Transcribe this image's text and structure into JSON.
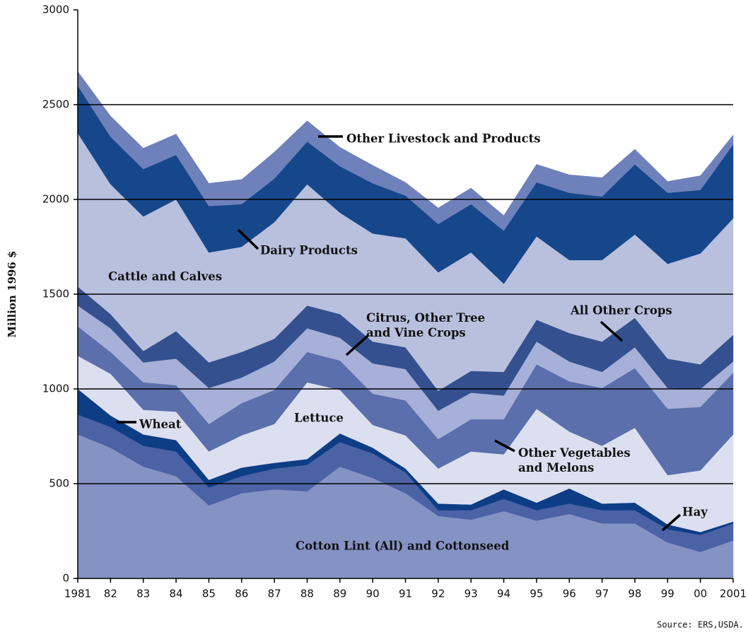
{
  "chart_data": {
    "type": "stacked_area",
    "y_label": "Million 1996 $",
    "source": "Source: ERS,USDA.",
    "categories": [
      "1981",
      "82",
      "83",
      "84",
      "85",
      "86",
      "87",
      "88",
      "89",
      "90",
      "91",
      "92",
      "93",
      "94",
      "95",
      "96",
      "97",
      "98",
      "99",
      "00",
      "2001"
    ],
    "ylim": [
      0,
      3000
    ],
    "yticks": [
      0,
      500,
      1000,
      1500,
      2000,
      2500,
      3000
    ],
    "grid": true,
    "series": [
      {
        "name": "Cotton Lint (All) and Cottonseed",
        "color": "#8592c4",
        "values": [
          760,
          690,
          590,
          540,
          385,
          450,
          470,
          460,
          590,
          530,
          450,
          330,
          310,
          355,
          305,
          340,
          290,
          290,
          190,
          140,
          200
        ]
      },
      {
        "name": "Hay",
        "color": "#4b62a5",
        "values": [
          105,
          110,
          110,
          130,
          95,
          90,
          110,
          140,
          130,
          130,
          110,
          30,
          50,
          65,
          55,
          55,
          70,
          70,
          70,
          90,
          90
        ]
      },
      {
        "name": "Wheat",
        "color": "#0d3d85",
        "values": [
          135,
          60,
          60,
          60,
          40,
          45,
          30,
          30,
          45,
          30,
          20,
          35,
          30,
          50,
          40,
          80,
          35,
          40,
          25,
          15,
          10
        ]
      },
      {
        "name": "Lettuce",
        "color": "#dcdff0",
        "values": [
          175,
          220,
          130,
          150,
          150,
          170,
          205,
          405,
          230,
          120,
          175,
          185,
          280,
          185,
          495,
          300,
          305,
          395,
          260,
          325,
          460
        ]
      },
      {
        "name": "Other Vegetables and Melons",
        "color": "#5a6fab",
        "values": [
          155,
          115,
          145,
          140,
          145,
          170,
          180,
          160,
          155,
          165,
          185,
          155,
          170,
          185,
          235,
          265,
          305,
          315,
          350,
          335,
          325
        ]
      },
      {
        "name": "Citrus, Other Tree and Vine Crops",
        "color": "#a6b0d8",
        "values": [
          110,
          125,
          105,
          140,
          190,
          135,
          150,
          125,
          120,
          160,
          165,
          150,
          140,
          125,
          120,
          105,
          85,
          110,
          110,
          95,
          60
        ]
      },
      {
        "name": "All Other Crops",
        "color": "#34508f",
        "values": [
          100,
          75,
          60,
          145,
          135,
          135,
          120,
          120,
          125,
          115,
          115,
          105,
          115,
          125,
          115,
          150,
          160,
          155,
          155,
          130,
          140
        ]
      },
      {
        "name": "Cattle and Calves",
        "color": "#b8c0de",
        "values": [
          810,
          685,
          710,
          695,
          580,
          555,
          615,
          640,
          535,
          570,
          575,
          625,
          625,
          465,
          440,
          385,
          430,
          440,
          500,
          585,
          615
        ]
      },
      {
        "name": "Dairy Products",
        "color": "#16478b",
        "values": [
          250,
          250,
          250,
          235,
          245,
          225,
          230,
          225,
          245,
          265,
          225,
          255,
          255,
          280,
          285,
          355,
          335,
          370,
          375,
          335,
          390
        ]
      },
      {
        "name": "Other Livestock and Products",
        "color": "#6f81bb",
        "values": [
          75,
          110,
          110,
          110,
          120,
          130,
          140,
          110,
          100,
          95,
          70,
          85,
          85,
          80,
          95,
          95,
          100,
          80,
          60,
          75,
          50
        ]
      }
    ]
  }
}
